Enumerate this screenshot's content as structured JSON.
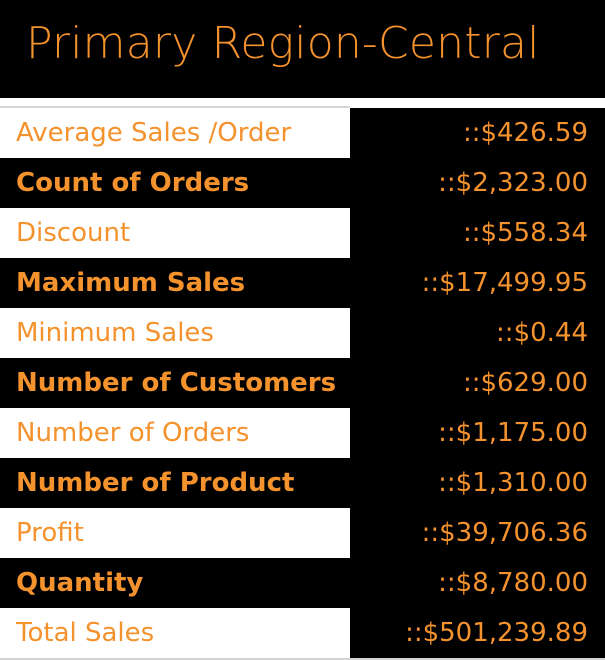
{
  "header": {
    "title": "Primary Region-Central"
  },
  "colors": {
    "accent": "#f4922d",
    "dark_background": "#000000",
    "light_background": "#ffffff"
  },
  "rows": [
    {
      "label": "Average Sales /Order",
      "value": "::$426.59"
    },
    {
      "label": "Count of Orders",
      "value": "::$2,323.00"
    },
    {
      "label": "Discount",
      "value": "::$558.34"
    },
    {
      "label": "Maximum Sales",
      "value": "::$17,499.95"
    },
    {
      "label": "Minimum Sales",
      "value": "::$0.44"
    },
    {
      "label": "Number of Customers",
      "value": "::$629.00"
    },
    {
      "label": "Number of Orders",
      "value": "::$1,175.00"
    },
    {
      "label": "Number of Product",
      "value": "::$1,310.00"
    },
    {
      "label": "Profit",
      "value": "::$39,706.36"
    },
    {
      "label": "Quantity",
      "value": "::$8,780.00"
    },
    {
      "label": "Total Sales",
      "value": "::$501,239.89"
    }
  ]
}
